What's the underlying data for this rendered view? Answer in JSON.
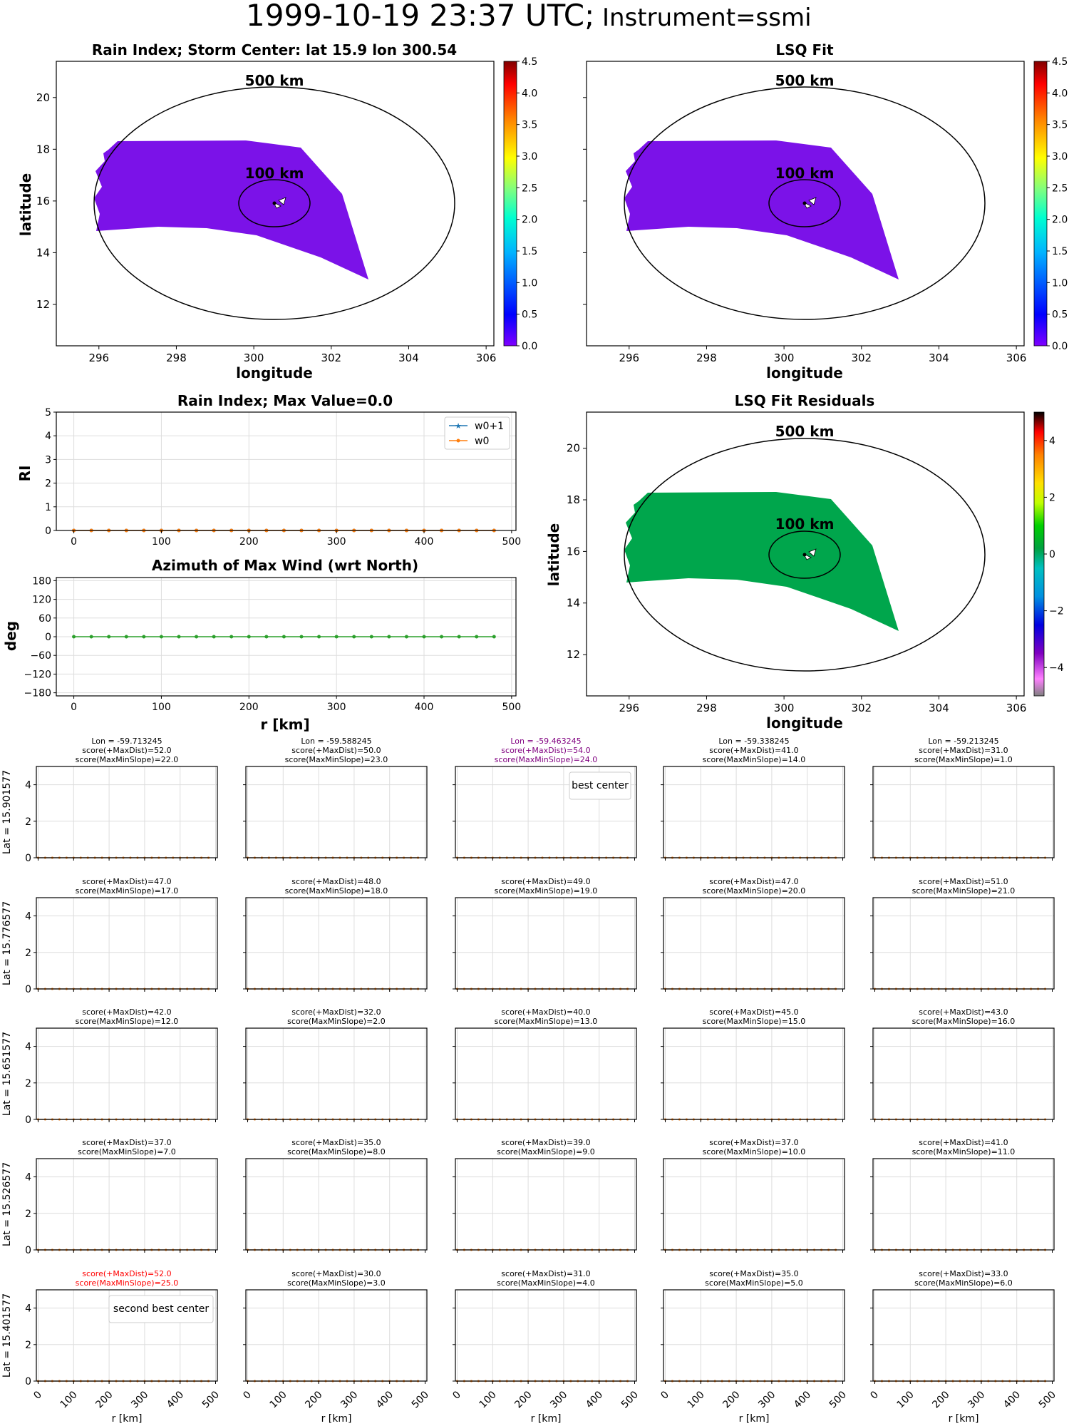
{
  "figure": {
    "title_main": "1999-10-19 23:37 UTC;",
    "title_inst": "Instrument=ssmi"
  },
  "chart_data": [
    {
      "id": "rain_map",
      "type": "heatmap",
      "title": "Rain Index; Storm Center: lat 15.9 lon 300.54",
      "xlabel": "longitude",
      "ylabel": "latitude",
      "xlim": [
        294.9,
        306.2
      ],
      "ylim": [
        10.4,
        21.4
      ],
      "xticks": [
        296,
        298,
        300,
        302,
        304,
        306
      ],
      "yticks": [
        12,
        14,
        16,
        18,
        20
      ],
      "storm_center": {
        "lon": 300.54,
        "lat": 15.9
      },
      "ring_labels": [
        "500 km",
        "100 km"
      ],
      "swath_color": "#7b12e8",
      "colorbar": {
        "min": 0.0,
        "max": 4.5,
        "ticks": [
          "0.0",
          "0.5",
          "1.0",
          "1.5",
          "2.0",
          "2.5",
          "3.0",
          "3.5",
          "4.0",
          "4.5"
        ],
        "colormap": "jet"
      }
    },
    {
      "id": "lsq_fit_map",
      "type": "heatmap",
      "title": "LSQ Fit",
      "xlabel": "longitude",
      "ylabel": "",
      "xlim": [
        294.9,
        306.2
      ],
      "ylim": [
        10.4,
        21.4
      ],
      "xticks": [
        296,
        298,
        300,
        302,
        304,
        306
      ],
      "yticks": [],
      "ring_labels": [
        "500 km",
        "100 km"
      ],
      "swath_color": "#7b12e8",
      "colorbar": {
        "min": 0.0,
        "max": 4.5,
        "ticks": [
          "0.0",
          "0.5",
          "1.0",
          "1.5",
          "2.0",
          "2.5",
          "3.0",
          "3.5",
          "4.0",
          "4.5"
        ],
        "colormap": "jet"
      }
    },
    {
      "id": "residual_map",
      "type": "heatmap",
      "title": "LSQ Fit Residuals",
      "xlabel": "longitude",
      "ylabel": "latitude",
      "xlim": [
        294.9,
        306.2
      ],
      "ylim": [
        10.4,
        21.4
      ],
      "xticks": [
        296,
        298,
        300,
        302,
        304,
        306
      ],
      "yticks": [
        12,
        14,
        16,
        18,
        20
      ],
      "ring_labels": [
        "500 km",
        "100 km"
      ],
      "swath_color": "#00a64c",
      "colorbar": {
        "min": -5,
        "max": 5,
        "ticks": [
          "−4",
          "−2",
          "0",
          "2",
          "4"
        ],
        "colormap": "nipy_spectral"
      }
    },
    {
      "id": "rain_index_profile",
      "type": "line",
      "title": "Rain Index; Max Value=0.0",
      "xlabel": "",
      "ylabel": "RI",
      "xlim": [
        -20,
        505
      ],
      "ylim": [
        0,
        5
      ],
      "xticks": [
        0,
        100,
        200,
        300,
        400,
        500
      ],
      "yticks": [
        0,
        1,
        2,
        3,
        4,
        5
      ],
      "grid": true,
      "legend": "top-right",
      "x": [
        0,
        20,
        40,
        60,
        80,
        100,
        120,
        140,
        160,
        180,
        200,
        220,
        240,
        260,
        280,
        300,
        320,
        340,
        360,
        380,
        400,
        420,
        440,
        460,
        480
      ],
      "series": [
        {
          "name": "w0+1",
          "color": "#1f77b4",
          "marker": "star",
          "values": [
            0,
            0,
            0,
            0,
            0,
            0,
            0,
            0,
            0,
            0,
            0,
            0,
            0,
            0,
            0,
            0,
            0,
            0,
            0,
            0,
            0,
            0,
            0,
            0,
            0
          ]
        },
        {
          "name": "w0",
          "color": "#ff7f0e",
          "marker": "dot",
          "values": [
            0,
            0,
            0,
            0,
            0,
            0,
            0,
            0,
            0,
            0,
            0,
            0,
            0,
            0,
            0,
            0,
            0,
            0,
            0,
            0,
            0,
            0,
            0,
            0,
            0
          ]
        }
      ]
    },
    {
      "id": "azimuth_profile",
      "type": "line",
      "title": "Azimuth of Max Wind (wrt North)",
      "xlabel": "r [km]",
      "ylabel": "deg",
      "xlim": [
        -20,
        505
      ],
      "ylim": [
        -190,
        190
      ],
      "xticks": [
        0,
        100,
        200,
        300,
        400,
        500
      ],
      "yticks": [
        180,
        120,
        60,
        0,
        -60,
        -120,
        -180
      ],
      "ytick_labels": [
        "180",
        "120",
        "60",
        "0",
        "−60",
        "−120",
        "−180"
      ],
      "grid": true,
      "x": [
        0,
        20,
        40,
        60,
        80,
        100,
        120,
        140,
        160,
        180,
        200,
        220,
        240,
        260,
        280,
        300,
        320,
        340,
        360,
        380,
        400,
        420,
        440,
        460,
        480
      ],
      "series": [
        {
          "color": "#2ca02c",
          "marker": "dot",
          "values": [
            0,
            0,
            0,
            0,
            0,
            0,
            0,
            0,
            0,
            0,
            0,
            0,
            0,
            0,
            0,
            0,
            0,
            0,
            0,
            0,
            0,
            0,
            0,
            0,
            0
          ]
        }
      ]
    },
    {
      "id": "candidate_grid",
      "type": "line",
      "xlim": [
        -5,
        505
      ],
      "ylim": [
        0,
        5
      ],
      "xticks": [
        0,
        100,
        200,
        300,
        400,
        500
      ],
      "yticks": [
        0,
        2,
        4
      ],
      "xlabel": "r [km]",
      "grid": true,
      "lon_labels": [
        "Lon = -59.713245",
        "Lon = -59.588245",
        "Lon = -59.463245",
        "Lon = -59.338245",
        "Lon = -59.213245"
      ],
      "lat_labels": [
        "Lat = 15.901577",
        "Lat = 15.776577",
        "Lat = 15.651577",
        "Lat = 15.526577",
        "Lat = 15.401577"
      ],
      "best_center_label": "best center",
      "second_best_label": "second best center",
      "best_color": "#800080",
      "second_color": "#ff0000",
      "scores": [
        [
          {
            "maxdist": "score(+MaxDist)=52.0",
            "slope": "score(MaxMinSlope)=22.0"
          },
          {
            "maxdist": "score(+MaxDist)=50.0",
            "slope": "score(MaxMinSlope)=23.0"
          },
          {
            "maxdist": "score(+MaxDist)=54.0",
            "slope": "score(MaxMinSlope)=24.0"
          },
          {
            "maxdist": "score(+MaxDist)=41.0",
            "slope": "score(MaxMinSlope)=14.0"
          },
          {
            "maxdist": "score(+MaxDist)=31.0",
            "slope": "score(MaxMinSlope)=1.0"
          }
        ],
        [
          {
            "maxdist": "score(+MaxDist)=47.0",
            "slope": "score(MaxMinSlope)=17.0"
          },
          {
            "maxdist": "score(+MaxDist)=48.0",
            "slope": "score(MaxMinSlope)=18.0"
          },
          {
            "maxdist": "score(+MaxDist)=49.0",
            "slope": "score(MaxMinSlope)=19.0"
          },
          {
            "maxdist": "score(+MaxDist)=47.0",
            "slope": "score(MaxMinSlope)=20.0"
          },
          {
            "maxdist": "score(+MaxDist)=51.0",
            "slope": "score(MaxMinSlope)=21.0"
          }
        ],
        [
          {
            "maxdist": "score(+MaxDist)=42.0",
            "slope": "score(MaxMinSlope)=12.0"
          },
          {
            "maxdist": "score(+MaxDist)=32.0",
            "slope": "score(MaxMinSlope)=2.0"
          },
          {
            "maxdist": "score(+MaxDist)=40.0",
            "slope": "score(MaxMinSlope)=13.0"
          },
          {
            "maxdist": "score(+MaxDist)=45.0",
            "slope": "score(MaxMinSlope)=15.0"
          },
          {
            "maxdist": "score(+MaxDist)=43.0",
            "slope": "score(MaxMinSlope)=16.0"
          }
        ],
        [
          {
            "maxdist": "score(+MaxDist)=37.0",
            "slope": "score(MaxMinSlope)=7.0"
          },
          {
            "maxdist": "score(+MaxDist)=35.0",
            "slope": "score(MaxMinSlope)=8.0"
          },
          {
            "maxdist": "score(+MaxDist)=39.0",
            "slope": "score(MaxMinSlope)=9.0"
          },
          {
            "maxdist": "score(+MaxDist)=37.0",
            "slope": "score(MaxMinSlope)=10.0"
          },
          {
            "maxdist": "score(+MaxDist)=41.0",
            "slope": "score(MaxMinSlope)=11.0"
          }
        ],
        [
          {
            "maxdist": "score(+MaxDist)=52.0",
            "slope": "score(MaxMinSlope)=25.0"
          },
          {
            "maxdist": "score(+MaxDist)=30.0",
            "slope": "score(MaxMinSlope)=3.0"
          },
          {
            "maxdist": "score(+MaxDist)=31.0",
            "slope": "score(MaxMinSlope)=4.0"
          },
          {
            "maxdist": "score(+MaxDist)=35.0",
            "slope": "score(MaxMinSlope)=5.0"
          },
          {
            "maxdist": "score(+MaxDist)=33.0",
            "slope": "score(MaxMinSlope)=6.0"
          }
        ]
      ],
      "best": [
        0,
        2
      ],
      "second": [
        4,
        0
      ],
      "x": [
        0,
        20,
        40,
        60,
        80,
        100,
        120,
        140,
        160,
        180,
        200,
        220,
        240,
        260,
        280,
        300,
        320,
        340,
        360,
        380,
        400,
        420,
        440,
        460,
        480
      ],
      "series": [
        {
          "name": "w0+1",
          "color": "#1f77b4",
          "values": [
            0,
            0,
            0,
            0,
            0,
            0,
            0,
            0,
            0,
            0,
            0,
            0,
            0,
            0,
            0,
            0,
            0,
            0,
            0,
            0,
            0,
            0,
            0,
            0,
            0
          ]
        },
        {
          "name": "w0",
          "color": "#ff7f0e",
          "values": [
            0,
            0,
            0,
            0,
            0,
            0,
            0,
            0,
            0,
            0,
            0,
            0,
            0,
            0,
            0,
            0,
            0,
            0,
            0,
            0,
            0,
            0,
            0,
            0,
            0
          ]
        }
      ]
    }
  ]
}
